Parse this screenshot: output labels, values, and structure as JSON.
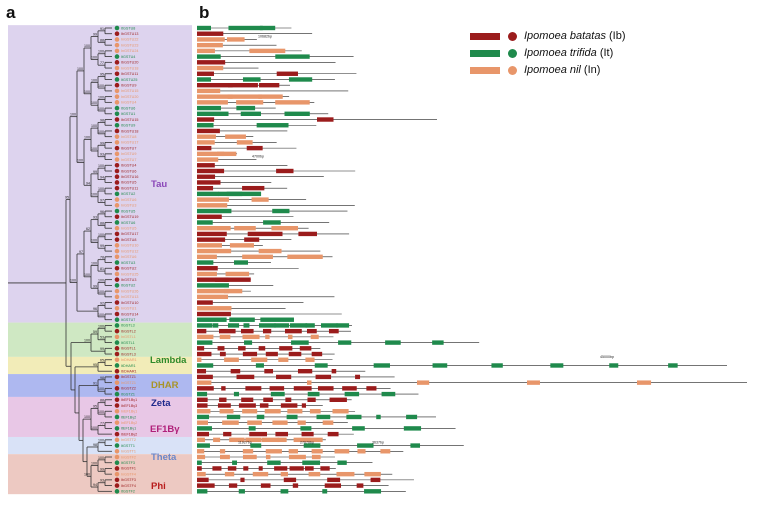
{
  "panels": {
    "a": "a",
    "b": "b"
  },
  "colors": {
    "ib": "#9b1c1c",
    "it": "#1f8a4c",
    "in": "#e8966a",
    "tau_bg": "#ddd3ee",
    "lambda_bg": "#cfe8c3",
    "dhar_bg": "#f2ecb8",
    "zeta_bg": "#aeb8f0",
    "ef1by_bg": "#e8c7e6",
    "theta_bg": "#d9e2f7",
    "phi_bg": "#edc9c2"
  },
  "legend": [
    {
      "species": "Ipomoea batatas",
      "abbr": " (Ib)",
      "key": "ib"
    },
    {
      "species": "Ipomoea trifida",
      "abbr": " (It)",
      "key": "it"
    },
    {
      "species": "Ipomoea nil",
      "abbr": " (In)",
      "key": "in"
    }
  ],
  "clades": [
    {
      "name": "Tau",
      "color": "#8a46b8",
      "key": "tau_bg"
    },
    {
      "name": "Lambda",
      "color": "#2f8a2a",
      "key": "lambda_bg"
    },
    {
      "name": "DHAR",
      "color": "#a89428",
      "key": "dhar_bg"
    },
    {
      "name": "Zeta",
      "color": "#1e2a8c",
      "key": "zeta_bg"
    },
    {
      "name": "EF1Bγ",
      "color": "#b0207a",
      "key": "ef1by_bg"
    },
    {
      "name": "Theta",
      "color": "#6b86c8",
      "key": "theta_bg"
    },
    {
      "name": "Phi",
      "color": "#b81c1c",
      "key": "phi_bg"
    }
  ],
  "genes": [
    {
      "id": "ItGSTU8",
      "sp": "it"
    },
    {
      "id": "IbGSTU13",
      "sp": "ib"
    },
    {
      "id": "InGSTU22",
      "sp": "in"
    },
    {
      "id": "InGSTU23",
      "sp": "in"
    },
    {
      "id": "InGSTU24",
      "sp": "in"
    },
    {
      "id": "ItGSTU4",
      "sp": "it"
    },
    {
      "id": "IbGSTU20",
      "sp": "ib"
    },
    {
      "id": "InGSTU18",
      "sp": "in"
    },
    {
      "id": "IbGSTU11",
      "sp": "ib"
    },
    {
      "id": "ItGSTU25",
      "sp": "it"
    },
    {
      "id": "IbGSTU9",
      "sp": "ib"
    },
    {
      "id": "InGSTU15",
      "sp": "in"
    },
    {
      "id": "InGSTU20",
      "sp": "in"
    },
    {
      "id": "InGSTU4",
      "sp": "in"
    },
    {
      "id": "ItGSTU6",
      "sp": "it"
    },
    {
      "id": "ItGSTU1",
      "sp": "it"
    },
    {
      "id": "IbGSTU15",
      "sp": "ib"
    },
    {
      "id": "ItGSTU9",
      "sp": "it"
    },
    {
      "id": "IbGSTU18",
      "sp": "ib"
    },
    {
      "id": "InGSTU8",
      "sp": "in"
    },
    {
      "id": "InGSTU17",
      "sp": "in"
    },
    {
      "id": "IbGSTU7",
      "sp": "ib"
    },
    {
      "id": "InGSTU9",
      "sp": "in"
    },
    {
      "id": "InGSTU7",
      "sp": "in"
    },
    {
      "id": "IbGSTU4",
      "sp": "ib"
    },
    {
      "id": "IbGSTU6",
      "sp": "ib"
    },
    {
      "id": "IbGSTU16",
      "sp": "ib"
    },
    {
      "id": "IbGSTU5",
      "sp": "ib"
    },
    {
      "id": "IbGSTU11",
      "sp": "ib"
    },
    {
      "id": "ItGSTU2",
      "sp": "it"
    },
    {
      "id": "InGSTU6",
      "sp": "in"
    },
    {
      "id": "InGSTU3",
      "sp": "in"
    },
    {
      "id": "ItGSTU5",
      "sp": "it"
    },
    {
      "id": "IbGSTU19",
      "sp": "ib"
    },
    {
      "id": "ItGSTU6",
      "sp": "it"
    },
    {
      "id": "InGSTU5",
      "sp": "in"
    },
    {
      "id": "IbGSTU17",
      "sp": "ib"
    },
    {
      "id": "IbGSTU8",
      "sp": "ib"
    },
    {
      "id": "InGSTU10",
      "sp": "in"
    },
    {
      "id": "InGSTU12",
      "sp": "in"
    },
    {
      "id": "InGSTU6",
      "sp": "in"
    },
    {
      "id": "ItGSTU3",
      "sp": "it"
    },
    {
      "id": "IbGSTU2",
      "sp": "ib"
    },
    {
      "id": "InGSTU25",
      "sp": "in"
    },
    {
      "id": "IbGSTU3",
      "sp": "ib"
    },
    {
      "id": "ItGSTU2",
      "sp": "it"
    },
    {
      "id": "InGSTU26",
      "sp": "in"
    },
    {
      "id": "InGSTU13",
      "sp": "in"
    },
    {
      "id": "IbGSTU10",
      "sp": "ib"
    },
    {
      "id": "InGSTU1",
      "sp": "in"
    },
    {
      "id": "IbGSTU14",
      "sp": "ib"
    },
    {
      "id": "ItGSTU7",
      "sp": "it"
    },
    {
      "id": "ItGSTL3",
      "sp": "it"
    },
    {
      "id": "IbGSTL2",
      "sp": "ib"
    },
    {
      "id": "InGSTL1",
      "sp": "in"
    },
    {
      "id": "ItGSTL1",
      "sp": "it"
    },
    {
      "id": "IbGSTL1",
      "sp": "ib"
    },
    {
      "id": "IbGSTL3",
      "sp": "ib"
    },
    {
      "id": "InDHAR1",
      "sp": "in"
    },
    {
      "id": "ItDHAR1",
      "sp": "it"
    },
    {
      "id": "IbDHAR1",
      "sp": "ib"
    },
    {
      "id": "IbGSTZ1",
      "sp": "ib"
    },
    {
      "id": "InGSTZ1",
      "sp": "in"
    },
    {
      "id": "IbGSTZ2",
      "sp": "ib"
    },
    {
      "id": "ItGSTZ1",
      "sp": "it"
    },
    {
      "id": "IbEF1Bγ1",
      "sp": "ib"
    },
    {
      "id": "IbEF1Bγ3",
      "sp": "ib"
    },
    {
      "id": "InEF1Bγ1",
      "sp": "in"
    },
    {
      "id": "ItEF1Bγ2",
      "sp": "it"
    },
    {
      "id": "InEF1Bγ2",
      "sp": "in"
    },
    {
      "id": "ItEF1Bγ1",
      "sp": "it"
    },
    {
      "id": "IbEF1Bγ2",
      "sp": "ib"
    },
    {
      "id": "InGSTT2",
      "sp": "in"
    },
    {
      "id": "ItGSTT1",
      "sp": "it"
    },
    {
      "id": "InGSTT1",
      "sp": "in"
    },
    {
      "id": "InGSTF2",
      "sp": "in"
    },
    {
      "id": "ItGSTF3",
      "sp": "it"
    },
    {
      "id": "IbGSTF1",
      "sp": "ib"
    },
    {
      "id": "InGSTF4",
      "sp": "in"
    },
    {
      "id": "IbGSTF3",
      "sp": "ib"
    },
    {
      "id": "IbGSTF4",
      "sp": "ib"
    },
    {
      "id": "ItGSTF2",
      "sp": "it"
    }
  ],
  "bootstrap": [
    "91",
    "88",
    "100",
    "77",
    "95",
    "100",
    "100",
    "100",
    "98",
    "100",
    "99",
    "93",
    "100",
    "94",
    "100",
    "97",
    "96",
    "88",
    "100",
    "99",
    "78",
    "81",
    "100",
    "100",
    "92",
    "100",
    "99",
    "100",
    "100",
    "100",
    "100",
    "100",
    "99",
    "100",
    "93",
    "100",
    "100",
    "99",
    "96",
    "100",
    "100",
    "100",
    "94",
    "62",
    "100",
    "100",
    "100",
    "97",
    "100",
    "100",
    "95",
    "100",
    "53",
    "99",
    "59",
    "100",
    "65",
    "95",
    "98",
    "100"
  ],
  "scale_labels": [
    "10682bp",
    "4700bp",
    "11927bp",
    "27070bp",
    "3637bp",
    "45000bp"
  ]
}
